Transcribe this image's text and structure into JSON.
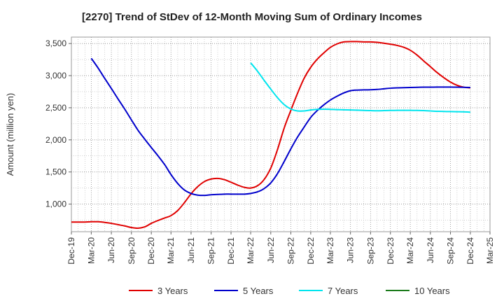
{
  "chart_data": {
    "type": "line",
    "title": "[2270]  Trend of StDev of 12-Month Moving Sum of Ordinary Incomes",
    "xlabel": "",
    "ylabel": "Amount (million yen)",
    "x_ticks": [
      "Dec-19",
      "Mar-20",
      "Jun-20",
      "Sep-20",
      "Dec-20",
      "Mar-21",
      "Jun-21",
      "Sep-21",
      "Dec-21",
      "Mar-22",
      "Jun-22",
      "Sep-22",
      "Dec-22",
      "Mar-23",
      "Jun-23",
      "Sep-23",
      "Dec-23",
      "Mar-24",
      "Jun-24",
      "Sep-24",
      "Dec-24",
      "Mar-25"
    ],
    "y_ticks": [
      "1,000",
      "1,500",
      "2,000",
      "2,500",
      "3,000",
      "3,500"
    ],
    "ylim": [
      570,
      3600
    ],
    "grid": true,
    "legend_position": "bottom",
    "series": [
      {
        "name": "3 Years",
        "color": "#e00000",
        "x": [
          "2019-12",
          "2020-01",
          "2020-02",
          "2020-03",
          "2020-04",
          "2020-05",
          "2020-06",
          "2020-07",
          "2020-08",
          "2020-09",
          "2020-10",
          "2020-11",
          "2020-12",
          "2021-01",
          "2021-02",
          "2021-03",
          "2021-04",
          "2021-05",
          "2021-06",
          "2021-07",
          "2021-08",
          "2021-09",
          "2021-10",
          "2021-11",
          "2021-12",
          "2022-01",
          "2022-02",
          "2022-03",
          "2022-04",
          "2022-05",
          "2022-06",
          "2022-07",
          "2022-08",
          "2022-09",
          "2022-10",
          "2022-11",
          "2022-12",
          "2023-01",
          "2023-02",
          "2023-03",
          "2023-04",
          "2023-05",
          "2023-06",
          "2023-07",
          "2023-08",
          "2023-09",
          "2023-10",
          "2023-11",
          "2023-12",
          "2024-01",
          "2024-02",
          "2024-03",
          "2024-04",
          "2024-05",
          "2024-06",
          "2024-07",
          "2024-08",
          "2024-09",
          "2024-10",
          "2024-11",
          "2024-12"
        ],
        "values": [
          720,
          720,
          720,
          725,
          725,
          715,
          700,
          680,
          660,
          635,
          625,
          645,
          700,
          745,
          785,
          820,
          900,
          1020,
          1160,
          1270,
          1350,
          1390,
          1400,
          1380,
          1340,
          1295,
          1260,
          1250,
          1285,
          1380,
          1560,
          1840,
          2180,
          2460,
          2720,
          2960,
          3130,
          3260,
          3360,
          3440,
          3495,
          3525,
          3530,
          3530,
          3525,
          3525,
          3518,
          3505,
          3490,
          3470,
          3440,
          3395,
          3320,
          3230,
          3140,
          3050,
          2970,
          2900,
          2850,
          2820,
          2810
        ]
      },
      {
        "name": "5 Years",
        "color": "#0000cc",
        "x": [
          "2020-03",
          "2020-04",
          "2020-05",
          "2020-06",
          "2020-07",
          "2020-08",
          "2020-09",
          "2020-10",
          "2020-11",
          "2020-12",
          "2021-01",
          "2021-02",
          "2021-03",
          "2021-04",
          "2021-05",
          "2021-06",
          "2021-07",
          "2021-08",
          "2021-09",
          "2021-10",
          "2021-11",
          "2021-12",
          "2022-01",
          "2022-02",
          "2022-03",
          "2022-04",
          "2022-05",
          "2022-06",
          "2022-07",
          "2022-08",
          "2022-09",
          "2022-10",
          "2022-11",
          "2022-12",
          "2023-01",
          "2023-02",
          "2023-03",
          "2023-04",
          "2023-05",
          "2023-06",
          "2023-07",
          "2023-08",
          "2023-09",
          "2023-10",
          "2023-11",
          "2023-12",
          "2024-01",
          "2024-02",
          "2024-03",
          "2024-04",
          "2024-05",
          "2024-06",
          "2024-07",
          "2024-08",
          "2024-09",
          "2024-10",
          "2024-11",
          "2024-12"
        ],
        "values": [
          3270,
          3120,
          2960,
          2800,
          2640,
          2480,
          2310,
          2150,
          2010,
          1880,
          1750,
          1610,
          1460,
          1320,
          1220,
          1165,
          1140,
          1135,
          1145,
          1150,
          1155,
          1155,
          1155,
          1155,
          1165,
          1190,
          1240,
          1330,
          1470,
          1660,
          1860,
          2040,
          2200,
          2350,
          2460,
          2550,
          2620,
          2680,
          2730,
          2765,
          2775,
          2778,
          2780,
          2785,
          2795,
          2805,
          2810,
          2812,
          2815,
          2818,
          2820,
          2820,
          2822,
          2822,
          2822,
          2820,
          2818,
          2815
        ]
      },
      {
        "name": "7 Years",
        "color": "#00e5ee",
        "x": [
          "2022-03",
          "2022-04",
          "2022-05",
          "2022-06",
          "2022-07",
          "2022-08",
          "2022-09",
          "2022-10",
          "2022-11",
          "2022-12",
          "2023-01",
          "2023-02",
          "2023-03",
          "2023-04",
          "2023-05",
          "2023-06",
          "2023-07",
          "2023-08",
          "2023-09",
          "2023-10",
          "2023-11",
          "2023-12",
          "2024-01",
          "2024-02",
          "2024-03",
          "2024-04",
          "2024-05",
          "2024-06",
          "2024-07",
          "2024-08",
          "2024-09",
          "2024-10",
          "2024-11",
          "2024-12"
        ],
        "values": [
          3200,
          3070,
          2930,
          2790,
          2660,
          2550,
          2480,
          2450,
          2450,
          2465,
          2475,
          2478,
          2475,
          2470,
          2468,
          2465,
          2462,
          2458,
          2455,
          2453,
          2455,
          2458,
          2460,
          2460,
          2460,
          2458,
          2455,
          2450,
          2445,
          2442,
          2440,
          2438,
          2436,
          2430
        ]
      },
      {
        "name": "10 Years",
        "color": "#1a7a1a",
        "x": [],
        "values": []
      }
    ]
  }
}
